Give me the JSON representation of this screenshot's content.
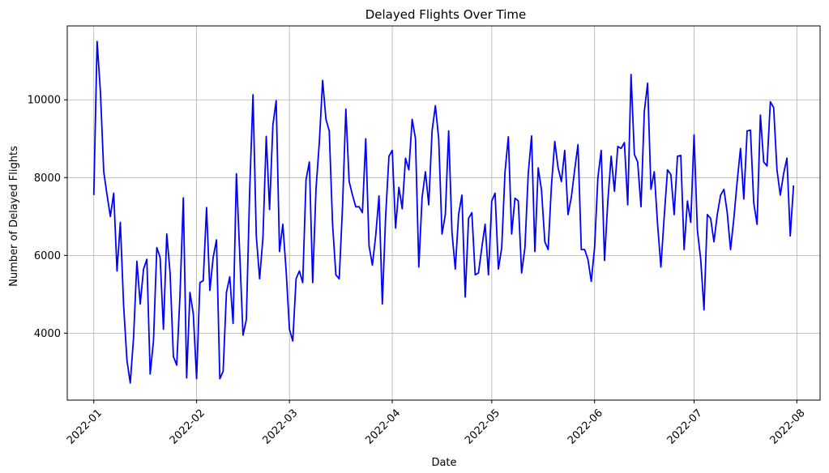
{
  "chart_data": {
    "type": "line",
    "title": "Delayed Flights Over Time",
    "xlabel": "Date",
    "ylabel": "Number of Delayed Flights",
    "grid": true,
    "line_color": "#0000ff",
    "xlim": [
      "2021-12-24",
      "2022-08-08"
    ],
    "ylim": [
      2280,
      11900
    ],
    "x_ticks": [
      {
        "date": "2022-01-01",
        "label": "2022-01"
      },
      {
        "date": "2022-02-01",
        "label": "2022-02"
      },
      {
        "date": "2022-03-01",
        "label": "2022-03"
      },
      {
        "date": "2022-04-01",
        "label": "2022-04"
      },
      {
        "date": "2022-05-01",
        "label": "2022-05"
      },
      {
        "date": "2022-06-01",
        "label": "2022-06"
      },
      {
        "date": "2022-07-01",
        "label": "2022-07"
      },
      {
        "date": "2022-08-01",
        "label": "2022-08"
      }
    ],
    "y_ticks": [
      {
        "value": 4000,
        "label": "4000"
      },
      {
        "value": 6000,
        "label": "6000"
      },
      {
        "value": 8000,
        "label": "8000"
      },
      {
        "value": 10000,
        "label": "10000"
      }
    ],
    "series": [
      {
        "start_date": "2022-01-01",
        "step_days": 1,
        "values": [
          7550,
          11500,
          10200,
          8150,
          7550,
          7000,
          7600,
          5600,
          6850,
          4700,
          3300,
          2720,
          3900,
          5850,
          4750,
          5650,
          5900,
          2950,
          3800,
          6200,
          5950,
          4100,
          6550,
          5550,
          3400,
          3180,
          5000,
          7480,
          2850,
          5050,
          4500,
          2830,
          5300,
          5350,
          7230,
          5100,
          5950,
          6400,
          2830,
          3020,
          5050,
          5450,
          4250,
          8100,
          6050,
          3950,
          4350,
          7650,
          10130,
          6500,
          5400,
          6450,
          9060,
          7180,
          9350,
          9980,
          6100,
          6800,
          5600,
          4100,
          3800,
          5400,
          5600,
          5300,
          7950,
          8400,
          5300,
          7700,
          8900,
          10500,
          9500,
          9200,
          6800,
          5500,
          5400,
          7250,
          9760,
          7900,
          7550,
          7250,
          7250,
          7100,
          9000,
          6250,
          5750,
          6500,
          7530,
          4750,
          7000,
          8550,
          8700,
          6700,
          7750,
          7200,
          8500,
          8200,
          9500,
          9000,
          5700,
          7500,
          8150,
          7300,
          9200,
          9850,
          9000,
          6550,
          7050,
          9200,
          6600,
          5650,
          7050,
          7550,
          4930,
          6950,
          7100,
          5500,
          5550,
          6200,
          6800,
          5500,
          7400,
          7600,
          5650,
          6200,
          8150,
          9050,
          6550,
          7470,
          7400,
          5550,
          6200,
          8100,
          9070,
          6100,
          8250,
          7680,
          6350,
          6150,
          7800,
          8930,
          8250,
          7900,
          8700,
          7050,
          7500,
          8200,
          8850,
          6150,
          6150,
          5900,
          5330,
          6200,
          8000,
          8700,
          5870,
          7400,
          8550,
          7650,
          8800,
          8750,
          8900,
          7300,
          10650,
          8600,
          8400,
          7250,
          9700,
          10430,
          7700,
          8150,
          6800,
          5700,
          7000,
          8200,
          8080,
          7050,
          8550,
          8570,
          6150,
          7400,
          6850,
          9100,
          6650,
          5900,
          4600,
          7050,
          6950,
          6350,
          7050,
          7550,
          7700,
          7100,
          6150,
          6950,
          7900,
          8750,
          7450,
          9200,
          9220,
          7350,
          6800,
          9610,
          8400,
          8300,
          9950,
          9800,
          8200,
          7550,
          8100,
          8500,
          6500,
          7800
        ]
      }
    ]
  }
}
